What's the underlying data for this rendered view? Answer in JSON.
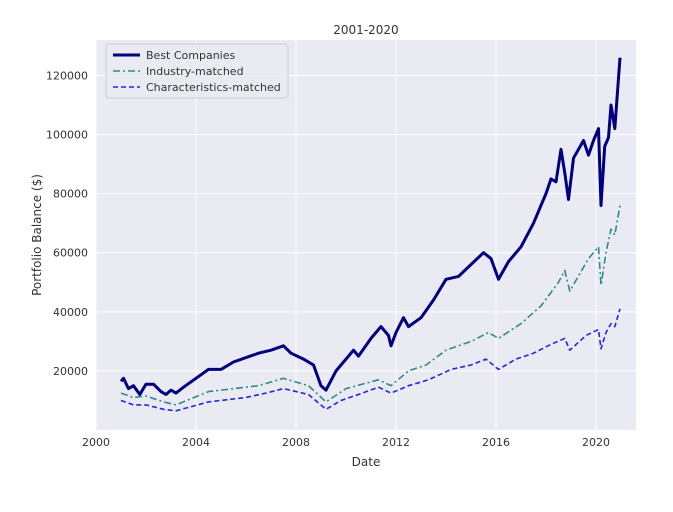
{
  "chart_data": {
    "type": "line",
    "title": "2001-2020",
    "xlabel": "Date",
    "ylabel": "Portfolio Balance ($)",
    "xlim": [
      2000,
      2021.6
    ],
    "ylim": [
      0,
      132000
    ],
    "xticks": [
      2000,
      2004,
      2008,
      2012,
      2016,
      2020
    ],
    "xtick_labels": [
      "2000",
      "2004",
      "2008",
      "2012",
      "2016",
      "2020"
    ],
    "yticks": [
      20000,
      40000,
      60000,
      80000,
      100000,
      120000
    ],
    "ytick_labels": [
      "20000",
      "40000",
      "60000",
      "80000",
      "100000",
      "120000"
    ],
    "grid": true,
    "legend_position": "top-left",
    "background": "#eaeaf2",
    "series": [
      {
        "name": "Best Companies",
        "color": "#000080",
        "style": "solid",
        "x": [
          2001.0,
          2001.1,
          2001.3,
          2001.5,
          2001.75,
          2002.0,
          2002.3,
          2002.6,
          2002.8,
          2003.0,
          2003.2,
          2003.5,
          2004.0,
          2004.5,
          2005.0,
          2005.5,
          2006.0,
          2006.5,
          2007.0,
          2007.5,
          2007.8,
          2008.3,
          2008.7,
          2009.0,
          2009.2,
          2009.6,
          2010.0,
          2010.3,
          2010.5,
          2011.0,
          2011.4,
          2011.7,
          2011.8,
          2012.0,
          2012.3,
          2012.5,
          2013.0,
          2013.5,
          2014.0,
          2014.5,
          2015.0,
          2015.5,
          2015.8,
          2016.1,
          2016.5,
          2017.0,
          2017.5,
          2018.0,
          2018.2,
          2018.4,
          2018.6,
          2018.75,
          2018.9,
          2019.1,
          2019.3,
          2019.5,
          2019.7,
          2019.9,
          2020.1,
          2020.2,
          2020.35,
          2020.5,
          2020.6,
          2020.75,
          2020.96
        ],
        "y": [
          16500,
          17500,
          14000,
          15000,
          12000,
          15500,
          15500,
          13000,
          12000,
          13500,
          12500,
          14500,
          17500,
          20500,
          20500,
          23000,
          24500,
          26000,
          27000,
          28500,
          26000,
          24000,
          22000,
          15000,
          13500,
          20000,
          24000,
          27000,
          25000,
          31000,
          35000,
          32000,
          28500,
          33000,
          38000,
          35000,
          38000,
          44000,
          51000,
          52000,
          56000,
          60000,
          58000,
          51000,
          57000,
          62000,
          70000,
          80000,
          85000,
          84000,
          95000,
          87000,
          78000,
          92000,
          95000,
          98000,
          93000,
          98000,
          102000,
          76000,
          96000,
          99000,
          110000,
          102000,
          126000
        ]
      },
      {
        "name": "Industry-matched",
        "color": "#2a8b8b",
        "style": "dashdot",
        "x": [
          2001.0,
          2001.5,
          2002.0,
          2002.7,
          2003.2,
          2004.5,
          2006.5,
          2007.5,
          2008.5,
          2009.2,
          2010.0,
          2011.3,
          2011.8,
          2012.5,
          2013.2,
          2014.0,
          2015.0,
          2015.7,
          2016.1,
          2017.0,
          2017.8,
          2018.5,
          2018.75,
          2018.95,
          2019.7,
          2020.1,
          2020.2,
          2020.4,
          2020.6,
          2020.75,
          2020.96
        ],
        "y": [
          12500,
          11000,
          11500,
          9500,
          8500,
          13000,
          15000,
          17500,
          15000,
          9500,
          14000,
          17000,
          15000,
          20000,
          22000,
          27000,
          30000,
          33000,
          31000,
          36000,
          42000,
          50000,
          54000,
          47000,
          58000,
          62000,
          49000,
          60000,
          68000,
          66000,
          76000
        ]
      },
      {
        "name": "Characteristics-matched",
        "color": "#2424e6",
        "style": "dashed",
        "x": [
          2001.0,
          2001.5,
          2002.0,
          2002.7,
          2003.2,
          2004.5,
          2006.0,
          2006.8,
          2007.5,
          2008.5,
          2009.2,
          2009.8,
          2010.5,
          2011.3,
          2011.8,
          2012.5,
          2013.3,
          2014.2,
          2015.0,
          2015.6,
          2016.1,
          2016.8,
          2017.5,
          2018.2,
          2018.75,
          2018.95,
          2019.6,
          2020.1,
          2020.2,
          2020.4,
          2020.6,
          2020.75,
          2020.96
        ],
        "y": [
          10000,
          8500,
          8500,
          7000,
          6500,
          9500,
          11000,
          12500,
          14000,
          12000,
          7000,
          10000,
          12000,
          14500,
          12500,
          15000,
          17000,
          20500,
          22000,
          24000,
          20500,
          24000,
          26000,
          29000,
          31000,
          27000,
          32000,
          34000,
          27500,
          33000,
          36000,
          35000,
          41000
        ]
      }
    ]
  }
}
